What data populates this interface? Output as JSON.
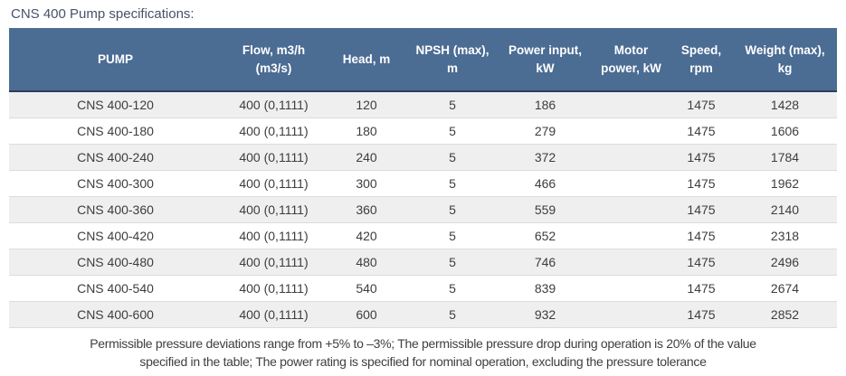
{
  "title": "CNS 400 Pump specifications:",
  "footnote": {
    "line1": "Permissible pressure deviations range from +5% to –3%; The permissible pressure drop during operation is 20% of the value",
    "line2": "specified in the table; The power rating is specified for nominal operation, excluding the pressure tolerance"
  },
  "colors": {
    "header_background": "#4b6c93",
    "header_text": "#ffffff",
    "header_rule": "#2d3e5a",
    "stripe_row": "#efefef",
    "row_divider": "#dcdcdc",
    "title_text": "#45536a",
    "body_text": "#3d3d3d"
  },
  "table": {
    "columns": [
      "PUMP",
      "Flow, m3/h (m3/s)",
      "Head, m",
      "NPSH (max), m",
      "Power input, kW",
      "Motor power, kW",
      "Speed, rpm",
      "Weight (max), kg"
    ],
    "rows": [
      [
        "CNS 400-120",
        "400 (0,1111)",
        "120",
        "5",
        "186",
        "",
        "1475",
        "1428"
      ],
      [
        "CNS 400-180",
        "400 (0,1111)",
        "180",
        "5",
        "279",
        "",
        "1475",
        "1606"
      ],
      [
        "CNS 400-240",
        "400 (0,1111)",
        "240",
        "5",
        "372",
        "",
        "1475",
        "1784"
      ],
      [
        "CNS 400-300",
        "400 (0,1111)",
        "300",
        "5",
        "466",
        "",
        "1475",
        "1962"
      ],
      [
        "CNS 400-360",
        "400 (0,1111)",
        "360",
        "5",
        "559",
        "",
        "1475",
        "2140"
      ],
      [
        "CNS 400-420",
        "400 (0,1111)",
        "420",
        "5",
        "652",
        "",
        "1475",
        "2318"
      ],
      [
        "CNS 400-480",
        "400 (0,1111)",
        "480",
        "5",
        "746",
        "",
        "1475",
        "2496"
      ],
      [
        "CNS 400-540",
        "400 (0,1111)",
        "540",
        "5",
        "839",
        "",
        "1475",
        "2674"
      ],
      [
        "CNS 400-600",
        "400 (0,1111)",
        "600",
        "5",
        "932",
        "",
        "1475",
        "2852"
      ]
    ]
  },
  "chart_data": {
    "type": "table",
    "title": "CNS 400 Pump specifications",
    "columns": [
      "PUMP",
      "Flow, m3/h (m3/s)",
      "Head, m",
      "NPSH (max), m",
      "Power input, kW",
      "Motor power, kW",
      "Speed, rpm",
      "Weight (max), kg"
    ],
    "rows": [
      [
        "CNS 400-120",
        "400 (0,1111)",
        120,
        5,
        186,
        null,
        1475,
        1428
      ],
      [
        "CNS 400-180",
        "400 (0,1111)",
        180,
        5,
        279,
        null,
        1475,
        1606
      ],
      [
        "CNS 400-240",
        "400 (0,1111)",
        240,
        5,
        372,
        null,
        1475,
        1784
      ],
      [
        "CNS 400-300",
        "400 (0,1111)",
        300,
        5,
        466,
        null,
        1475,
        1962
      ],
      [
        "CNS 400-360",
        "400 (0,1111)",
        360,
        5,
        559,
        null,
        1475,
        2140
      ],
      [
        "CNS 400-420",
        "400 (0,1111)",
        420,
        5,
        652,
        null,
        1475,
        2318
      ],
      [
        "CNS 400-480",
        "400 (0,1111)",
        480,
        5,
        746,
        null,
        1475,
        2496
      ],
      [
        "CNS 400-540",
        "400 (0,1111)",
        540,
        5,
        839,
        null,
        1475,
        2674
      ],
      [
        "CNS 400-600",
        "400 (0,1111)",
        600,
        5,
        932,
        null,
        1475,
        2852
      ]
    ]
  }
}
